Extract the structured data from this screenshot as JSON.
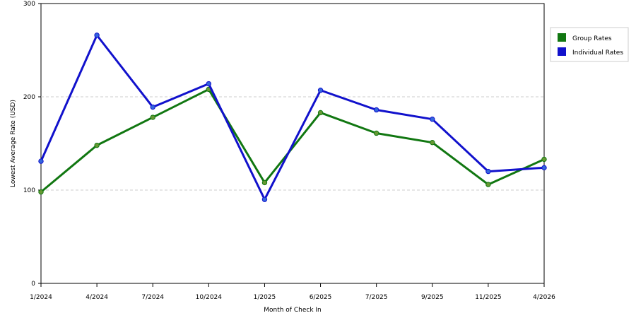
{
  "chart_data": {
    "type": "line",
    "title": "",
    "xlabel": "Month of Check In",
    "ylabel": "Lowest Average Rate (USD)",
    "ylim": [
      0,
      300
    ],
    "yticks": [
      "0",
      "100",
      "200",
      "300"
    ],
    "categories": [
      "1/2024",
      "4/2024",
      "7/2024",
      "10/2024",
      "1/2025",
      "6/2025",
      "7/2025",
      "9/2025",
      "11/2025",
      "4/2026"
    ],
    "grid": "horizontal-dashed",
    "legend_position": "right",
    "series": [
      {
        "name": "Group Rates",
        "color": "#117711",
        "marker_color": "#669933",
        "values": [
          98,
          148,
          178,
          208,
          108,
          183,
          161,
          151,
          106,
          133
        ]
      },
      {
        "name": "Individual Rates",
        "color": "#1111cc",
        "marker_color": "#3366dd",
        "values": [
          131,
          266,
          189,
          214,
          90,
          207,
          186,
          176,
          120,
          124
        ]
      }
    ]
  }
}
